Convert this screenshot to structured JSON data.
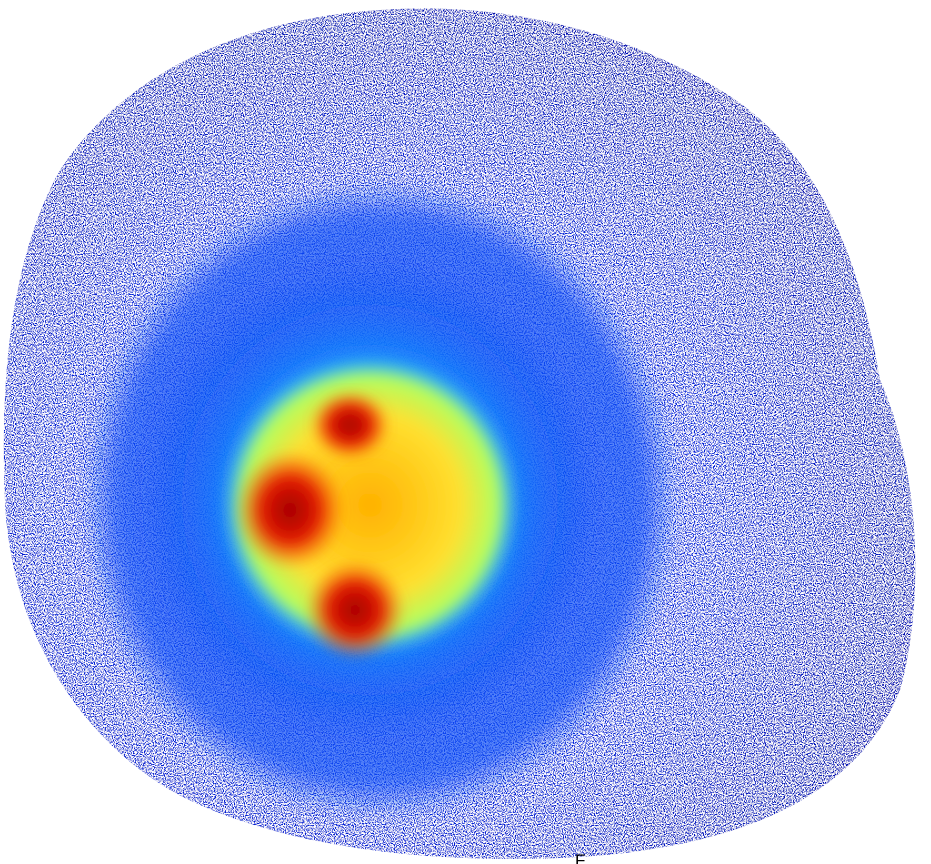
{
  "label": "F"
}
